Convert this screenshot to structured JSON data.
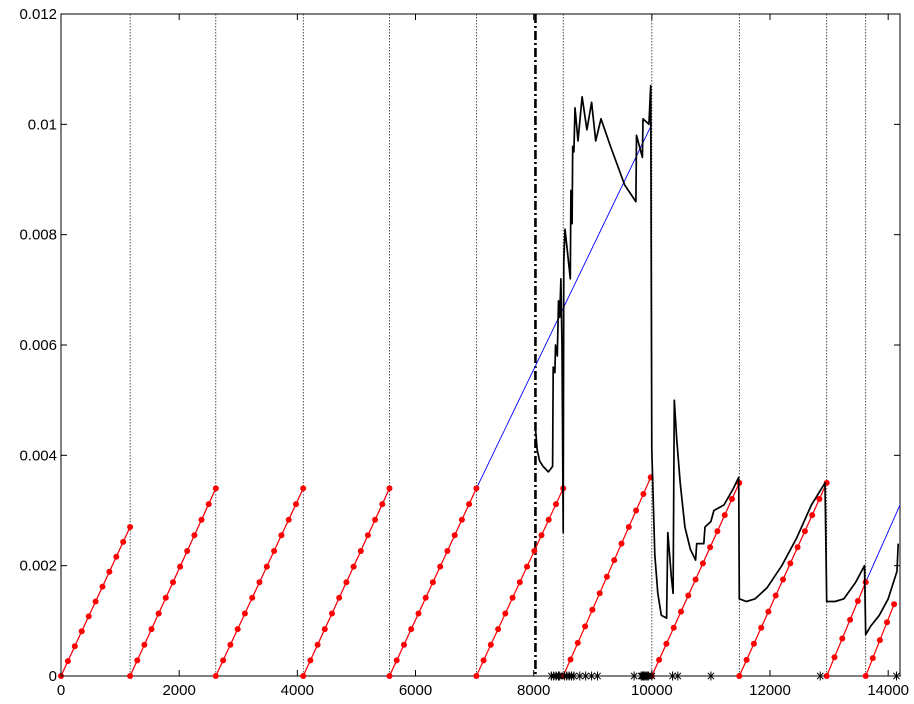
{
  "chart_data": {
    "type": "line",
    "title": "",
    "xlabel": "",
    "ylabel": "",
    "xlim": [
      0,
      14200
    ],
    "ylim": [
      0,
      0.012
    ],
    "grid": false,
    "legend": "none",
    "xticks": [
      0,
      2000,
      4000,
      6000,
      8000,
      10000,
      12000,
      14000
    ],
    "xtick_labels": [
      "0",
      "2000",
      "4000",
      "6000",
      "8000",
      "10000",
      "12000",
      "14000"
    ],
    "yticks": [
      0,
      0.002,
      0.004,
      0.006,
      0.008,
      0.01,
      0.012
    ],
    "ytick_labels": [
      "0",
      "0.002",
      "0.004",
      "0.006",
      "0.008",
      "0.01",
      "0.012"
    ],
    "colors": {
      "black": "#000000",
      "blue": "#0000ff",
      "red": "#ff0000"
    },
    "segment_boundaries": [
      1170,
      2620,
      4100,
      5560,
      7030,
      8500,
      10000,
      11480,
      12960,
      13620
    ],
    "dashdot_line_x": 8030,
    "series": [
      {
        "style": "blue_line",
        "segments": [
          [
            [
              0,
              0
            ],
            [
              1170,
              0.0027
            ]
          ],
          [
            [
              1170,
              0
            ],
            [
              2620,
              0.0034
            ]
          ],
          [
            [
              2620,
              0
            ],
            [
              4100,
              0.0034
            ]
          ],
          [
            [
              4100,
              0
            ],
            [
              5560,
              0.0034
            ]
          ],
          [
            [
              5560,
              0
            ],
            [
              7030,
              0.0034
            ],
            [
              10000,
              0.01
            ]
          ],
          [
            [
              10000,
              0
            ],
            [
              11480,
              0.0035
            ]
          ],
          [
            [
              11480,
              0
            ],
            [
              12960,
              0.0035
            ]
          ],
          [
            [
              12960,
              0
            ],
            [
              13620,
              0.0017
            ],
            [
              14200,
              0.0031
            ]
          ]
        ]
      },
      {
        "style": "red_dots",
        "segments": [
          {
            "x0": 0,
            "x1": 1170,
            "y0": 0,
            "y1": 0.0027,
            "n": 11
          },
          {
            "x0": 1170,
            "x1": 2620,
            "y0": 0,
            "y1": 0.0034,
            "n": 13
          },
          {
            "x0": 2620,
            "x1": 4100,
            "y0": 0,
            "y1": 0.0034,
            "n": 13
          },
          {
            "x0": 4100,
            "x1": 5560,
            "y0": 0,
            "y1": 0.0034,
            "n": 13
          },
          {
            "x0": 5560,
            "x1": 7030,
            "y0": 0,
            "y1": 0.0034,
            "n": 13
          },
          {
            "x0": 7030,
            "x1": 8500,
            "y0": 0,
            "y1": 0.0034,
            "n": 13
          },
          {
            "x0": 8500,
            "x1": 9980,
            "y0": 0,
            "y1": 0.0036,
            "n": 13
          },
          {
            "x0": 10000,
            "x1": 11480,
            "y0": 0,
            "y1": 0.0035,
            "n": 13
          },
          {
            "x0": 11480,
            "x1": 12960,
            "y0": 0,
            "y1": 0.0035,
            "n": 13
          },
          {
            "x0": 12960,
            "x1": 13620,
            "y0": 0,
            "y1": 0.0017,
            "n": 6
          },
          {
            "x0": 13620,
            "x1": 14100,
            "y0": 0,
            "y1": 0.0013,
            "n": 5
          }
        ]
      },
      {
        "style": "black_line",
        "points": [
          [
            8030,
            0.0045
          ],
          [
            8060,
            0.0041
          ],
          [
            8100,
            0.0039
          ],
          [
            8160,
            0.0038
          ],
          [
            8250,
            0.0037
          ],
          [
            8320,
            0.0038
          ],
          [
            8330,
            0.0056
          ],
          [
            8360,
            0.0055
          ],
          [
            8370,
            0.006
          ],
          [
            8400,
            0.0058
          ],
          [
            8420,
            0.0068
          ],
          [
            8440,
            0.0065
          ],
          [
            8460,
            0.0072
          ],
          [
            8480,
            0.006
          ],
          [
            8500,
            0.0026
          ],
          [
            8510,
            0.0075
          ],
          [
            8530,
            0.0081
          ],
          [
            8560,
            0.0078
          ],
          [
            8620,
            0.0072
          ],
          [
            8630,
            0.0088
          ],
          [
            8650,
            0.0082
          ],
          [
            8660,
            0.0096
          ],
          [
            8680,
            0.0095
          ],
          [
            8700,
            0.0103
          ],
          [
            8750,
            0.0097
          ],
          [
            8820,
            0.0105
          ],
          [
            8900,
            0.0099
          ],
          [
            8980,
            0.0104
          ],
          [
            9050,
            0.0097
          ],
          [
            9140,
            0.0101
          ],
          [
            9300,
            0.0096
          ],
          [
            9540,
            0.0089
          ],
          [
            9730,
            0.0086
          ],
          [
            9740,
            0.0098
          ],
          [
            9840,
            0.0094
          ],
          [
            9850,
            0.0101
          ],
          [
            9950,
            0.01
          ],
          [
            9980,
            0.0107
          ],
          [
            10000,
            0.0041
          ],
          [
            10050,
            0.0022
          ],
          [
            10100,
            0.0015
          ],
          [
            10160,
            0.0011
          ],
          [
            10250,
            0.00105
          ],
          [
            10270,
            0.0026
          ],
          [
            10300,
            0.0022
          ],
          [
            10330,
            0.0018
          ],
          [
            10360,
            0.0015
          ],
          [
            10380,
            0.005
          ],
          [
            10420,
            0.0043
          ],
          [
            10480,
            0.0035
          ],
          [
            10560,
            0.0027
          ],
          [
            10650,
            0.0023
          ],
          [
            10740,
            0.0021
          ],
          [
            10760,
            0.0024
          ],
          [
            10880,
            0.0024
          ],
          [
            10900,
            0.0027
          ],
          [
            11000,
            0.0028
          ],
          [
            11050,
            0.003
          ],
          [
            11220,
            0.0031
          ],
          [
            11380,
            0.0034
          ],
          [
            11470,
            0.0036
          ],
          [
            11480,
            0.0014
          ],
          [
            11600,
            0.00135
          ],
          [
            11750,
            0.0014
          ],
          [
            11950,
            0.0016
          ],
          [
            12200,
            0.002
          ],
          [
            12450,
            0.0025
          ],
          [
            12700,
            0.0031
          ],
          [
            12930,
            0.0035
          ],
          [
            12960,
            0.00135
          ],
          [
            13100,
            0.00135
          ],
          [
            13250,
            0.0014
          ],
          [
            13450,
            0.0017
          ],
          [
            13600,
            0.002
          ],
          [
            13620,
            0.00075
          ],
          [
            13700,
            0.0009
          ],
          [
            13850,
            0.0011
          ],
          [
            14000,
            0.0014
          ],
          [
            14150,
            0.0019
          ],
          [
            14170,
            0.0024
          ]
        ]
      },
      {
        "style": "black_asterisks_on_x_axis",
        "x": [
          8300,
          8340,
          8380,
          8420,
          8440,
          8520,
          8560,
          8600,
          8640,
          8680,
          8780,
          8880,
          8980,
          9080,
          9700,
          9820,
          9840,
          9860,
          9880,
          9900,
          9920,
          9940,
          10000,
          10350,
          10440,
          11000,
          12850,
          14140
        ]
      }
    ]
  }
}
